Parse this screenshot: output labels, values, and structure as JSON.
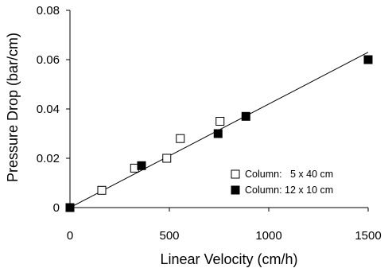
{
  "chart_data": {
    "type": "scatter",
    "xlabel": "Linear Velocity (cm/h)",
    "ylabel": "Pressure Drop (bar/cm)",
    "xlim": [
      0,
      1500
    ],
    "ylim": [
      0,
      0.08
    ],
    "x_ticks": [
      0,
      500,
      1000,
      1500
    ],
    "x_tick_labels": [
      "0",
      "500",
      "1000",
      "1500"
    ],
    "y_ticks": [
      0,
      0.02,
      0.04,
      0.06,
      0.08
    ],
    "y_tick_labels": [
      "0",
      "0.02",
      "0.04",
      "0.06",
      "0.08"
    ],
    "grid": false,
    "legend_position": "bottom-right",
    "series": [
      {
        "name": "Column:   5 x 40 cm",
        "marker": "open-square",
        "color": "#000000",
        "x": [
          0,
          160,
          325,
          487,
          555,
          755
        ],
        "y": [
          0.0,
          0.007,
          0.016,
          0.02,
          0.028,
          0.035
        ]
      },
      {
        "name": "Column: 12 x 10 cm",
        "marker": "filled-square",
        "color": "#000000",
        "x": [
          0,
          360,
          745,
          885,
          1500
        ],
        "y": [
          0.0,
          0.017,
          0.03,
          0.037,
          0.06
        ]
      }
    ],
    "trendline": {
      "x": [
        0,
        1500
      ],
      "y": [
        0.0,
        0.063
      ]
    }
  }
}
